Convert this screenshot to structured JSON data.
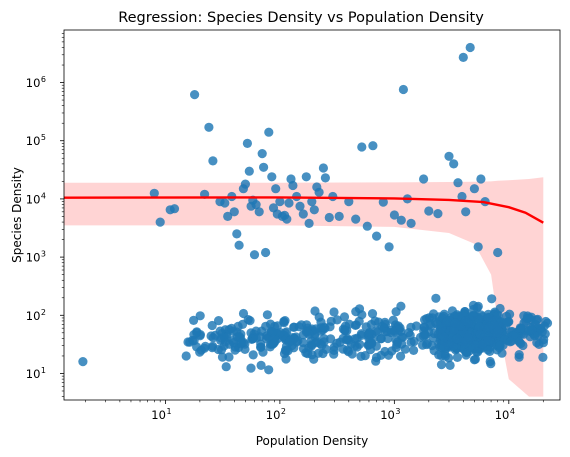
{
  "chart_data": {
    "type": "scatter",
    "title": "Regression: Species Density vs Population Density",
    "xlabel": "Population Density",
    "ylabel": "Species Density",
    "xscale": "log",
    "yscale": "log",
    "xlim": [
      1.3,
      28000
    ],
    "ylim": [
      3.5,
      8000000
    ],
    "x_ticks": [
      {
        "base": "10",
        "exp": "1",
        "value": 10
      },
      {
        "base": "10",
        "exp": "2",
        "value": 100
      },
      {
        "base": "10",
        "exp": "3",
        "value": 1000
      },
      {
        "base": "10",
        "exp": "4",
        "value": 10000
      }
    ],
    "y_ticks": [
      {
        "base": "10",
        "exp": "1",
        "value": 10
      },
      {
        "base": "10",
        "exp": "2",
        "value": 100
      },
      {
        "base": "10",
        "exp": "3",
        "value": 1000
      },
      {
        "base": "10",
        "exp": "4",
        "value": 10000
      },
      {
        "base": "10",
        "exp": "5",
        "value": 100000
      },
      {
        "base": "10",
        "exp": "6",
        "value": 1000000
      }
    ],
    "grid": false,
    "legend": "none",
    "colors": {
      "points": "#1f77b4",
      "regression_line": "#ff0000",
      "confidence_band": "#ffcccc"
    },
    "scatter_high_points": [
      [
        1.9,
        16
      ],
      [
        8,
        12500
      ],
      [
        9,
        4000
      ],
      [
        11,
        6500
      ],
      [
        12,
        6800
      ],
      [
        18,
        620000
      ],
      [
        22,
        12000
      ],
      [
        24,
        170000
      ],
      [
        26,
        45000
      ],
      [
        30,
        9000
      ],
      [
        33,
        8500
      ],
      [
        35,
        5000
      ],
      [
        38,
        11000
      ],
      [
        40,
        6000
      ],
      [
        42,
        2500
      ],
      [
        44,
        1600
      ],
      [
        48,
        15000
      ],
      [
        50,
        18000
      ],
      [
        52,
        90000
      ],
      [
        54,
        30000
      ],
      [
        56,
        7500
      ],
      [
        58,
        9500
      ],
      [
        60,
        1100
      ],
      [
        62,
        8000
      ],
      [
        66,
        6000
      ],
      [
        70,
        60000
      ],
      [
        72,
        35000
      ],
      [
        75,
        1200
      ],
      [
        80,
        140000
      ],
      [
        85,
        24000
      ],
      [
        88,
        7000
      ],
      [
        92,
        15000
      ],
      [
        95,
        5500
      ],
      [
        100,
        9000
      ],
      [
        105,
        5000
      ],
      [
        110,
        5200
      ],
      [
        115,
        4500
      ],
      [
        120,
        8500
      ],
      [
        125,
        22000
      ],
      [
        130,
        17000
      ],
      [
        140,
        11000
      ],
      [
        150,
        7500
      ],
      [
        160,
        5500
      ],
      [
        170,
        24000
      ],
      [
        180,
        3800
      ],
      [
        190,
        9000
      ],
      [
        200,
        6500
      ],
      [
        210,
        16000
      ],
      [
        220,
        13000
      ],
      [
        240,
        34000
      ],
      [
        250,
        23000
      ],
      [
        270,
        4800
      ],
      [
        290,
        11000
      ],
      [
        330,
        5000
      ],
      [
        400,
        9000
      ],
      [
        460,
        4500
      ],
      [
        520,
        78000
      ],
      [
        580,
        3400
      ],
      [
        650,
        82000
      ],
      [
        700,
        2300
      ],
      [
        800,
        8800
      ],
      [
        900,
        1500
      ],
      [
        1000,
        5300
      ],
      [
        1150,
        4300
      ],
      [
        1200,
        760000
      ],
      [
        1300,
        10000
      ],
      [
        1400,
        3800
      ],
      [
        1800,
        22000
      ],
      [
        2000,
        6200
      ],
      [
        2400,
        5600
      ],
      [
        3000,
        54000
      ],
      [
        3300,
        40000
      ],
      [
        3600,
        19000
      ],
      [
        3900,
        11000
      ],
      [
        4000,
        2700000
      ],
      [
        4200,
        6000
      ],
      [
        4600,
        4000000
      ],
      [
        5000,
        15000
      ],
      [
        5400,
        1500
      ],
      [
        5700,
        22000
      ],
      [
        6200,
        9000
      ],
      [
        8000,
        1200
      ]
    ],
    "low_cluster_summary": {
      "point_count": 800,
      "x_range": [
        6,
        22000
      ],
      "y_range": [
        8,
        400
      ],
      "median_y": 40,
      "densest_region_x": [
        2500,
        9000
      ]
    },
    "regression_line": {
      "x": [
        1.3,
        100,
        1000,
        3000,
        6000,
        10000,
        14000,
        20000
      ],
      "y": [
        10500,
        10600,
        10200,
        9600,
        8800,
        7200,
        5800,
        3900
      ]
    },
    "confidence_band": {
      "x": [
        1.3,
        100,
        1000,
        3000,
        5000,
        7000,
        8000,
        10000,
        15000,
        20000
      ],
      "lower": [
        3500,
        3500,
        3300,
        2600,
        1700,
        500,
        80,
        8,
        4,
        4
      ],
      "upper": [
        19000,
        19000,
        19200,
        19500,
        19800,
        20000,
        20500,
        21000,
        22000,
        23500
      ]
    }
  }
}
